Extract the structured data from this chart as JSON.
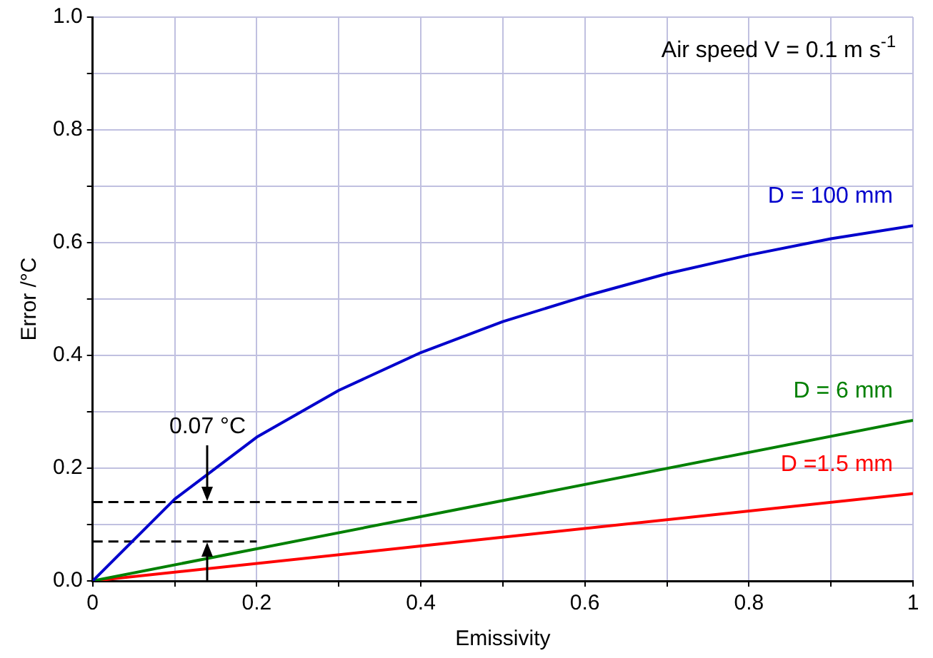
{
  "chart_data": {
    "type": "line",
    "xlabel": "Emissivity",
    "ylabel": "Error /°C",
    "x": [
      0,
      0.1,
      0.2,
      0.3,
      0.4,
      0.5,
      0.6,
      0.7,
      0.8,
      0.9,
      1.0
    ],
    "series": [
      {
        "name": "D = 100 mm",
        "color": "#0000cc",
        "values": [
          0,
          0.145,
          0.255,
          0.338,
          0.405,
          0.46,
          0.505,
          0.545,
          0.578,
          0.607,
          0.63
        ]
      },
      {
        "name": "D = 6 mm",
        "color": "#008000",
        "x": [
          0,
          1
        ],
        "values": [
          0,
          0.285
        ]
      },
      {
        "name": "D =1.5 mm",
        "color": "#ff0000",
        "x": [
          0,
          1
        ],
        "values": [
          0,
          0.155
        ]
      },
      {
        "color": "#000000",
        "line_style": "dashed",
        "x": [
          0,
          0.4
        ],
        "values": [
          0.14,
          0.14
        ]
      },
      {
        "color": "#000000",
        "line_style": "dashed",
        "x": [
          0,
          0.2
        ],
        "values": [
          0.07,
          0.07
        ]
      }
    ],
    "xlim": [
      0,
      1
    ],
    "xticks": [
      0,
      {
        "value": 0.1,
        "label": null
      },
      0.2,
      {
        "value": 0.3,
        "label": null
      },
      0.4,
      {
        "value": 0.5,
        "label": null
      },
      0.6,
      {
        "value": 0.7,
        "label": null
      },
      0.8,
      {
        "value": 0.9,
        "label": null
      },
      1
    ],
    "ylim": [
      0,
      1
    ],
    "yticks": [
      {
        "value": 0,
        "label": "0.0"
      },
      {
        "value": 0.1,
        "label": null
      },
      {
        "value": 0.2,
        "label": "0.2"
      },
      {
        "value": 0.3,
        "label": null
      },
      {
        "value": 0.4,
        "label": "0.4"
      },
      {
        "value": 0.5,
        "label": null
      },
      {
        "value": 0.6,
        "label": "0.6"
      },
      {
        "value": 0.7,
        "label": null
      },
      {
        "value": 0.8,
        "label": "0.8"
      },
      {
        "value": 0.9,
        "label": null
      },
      {
        "value": 1,
        "label": "1.0"
      }
    ],
    "annotations": [
      "Air speed V = 0.1 m s$^{-1}$",
      "0.07 °C"
    ],
    "grid": true,
    "legend": false,
    "marker": "none",
    "line_style": "solid"
  }
}
